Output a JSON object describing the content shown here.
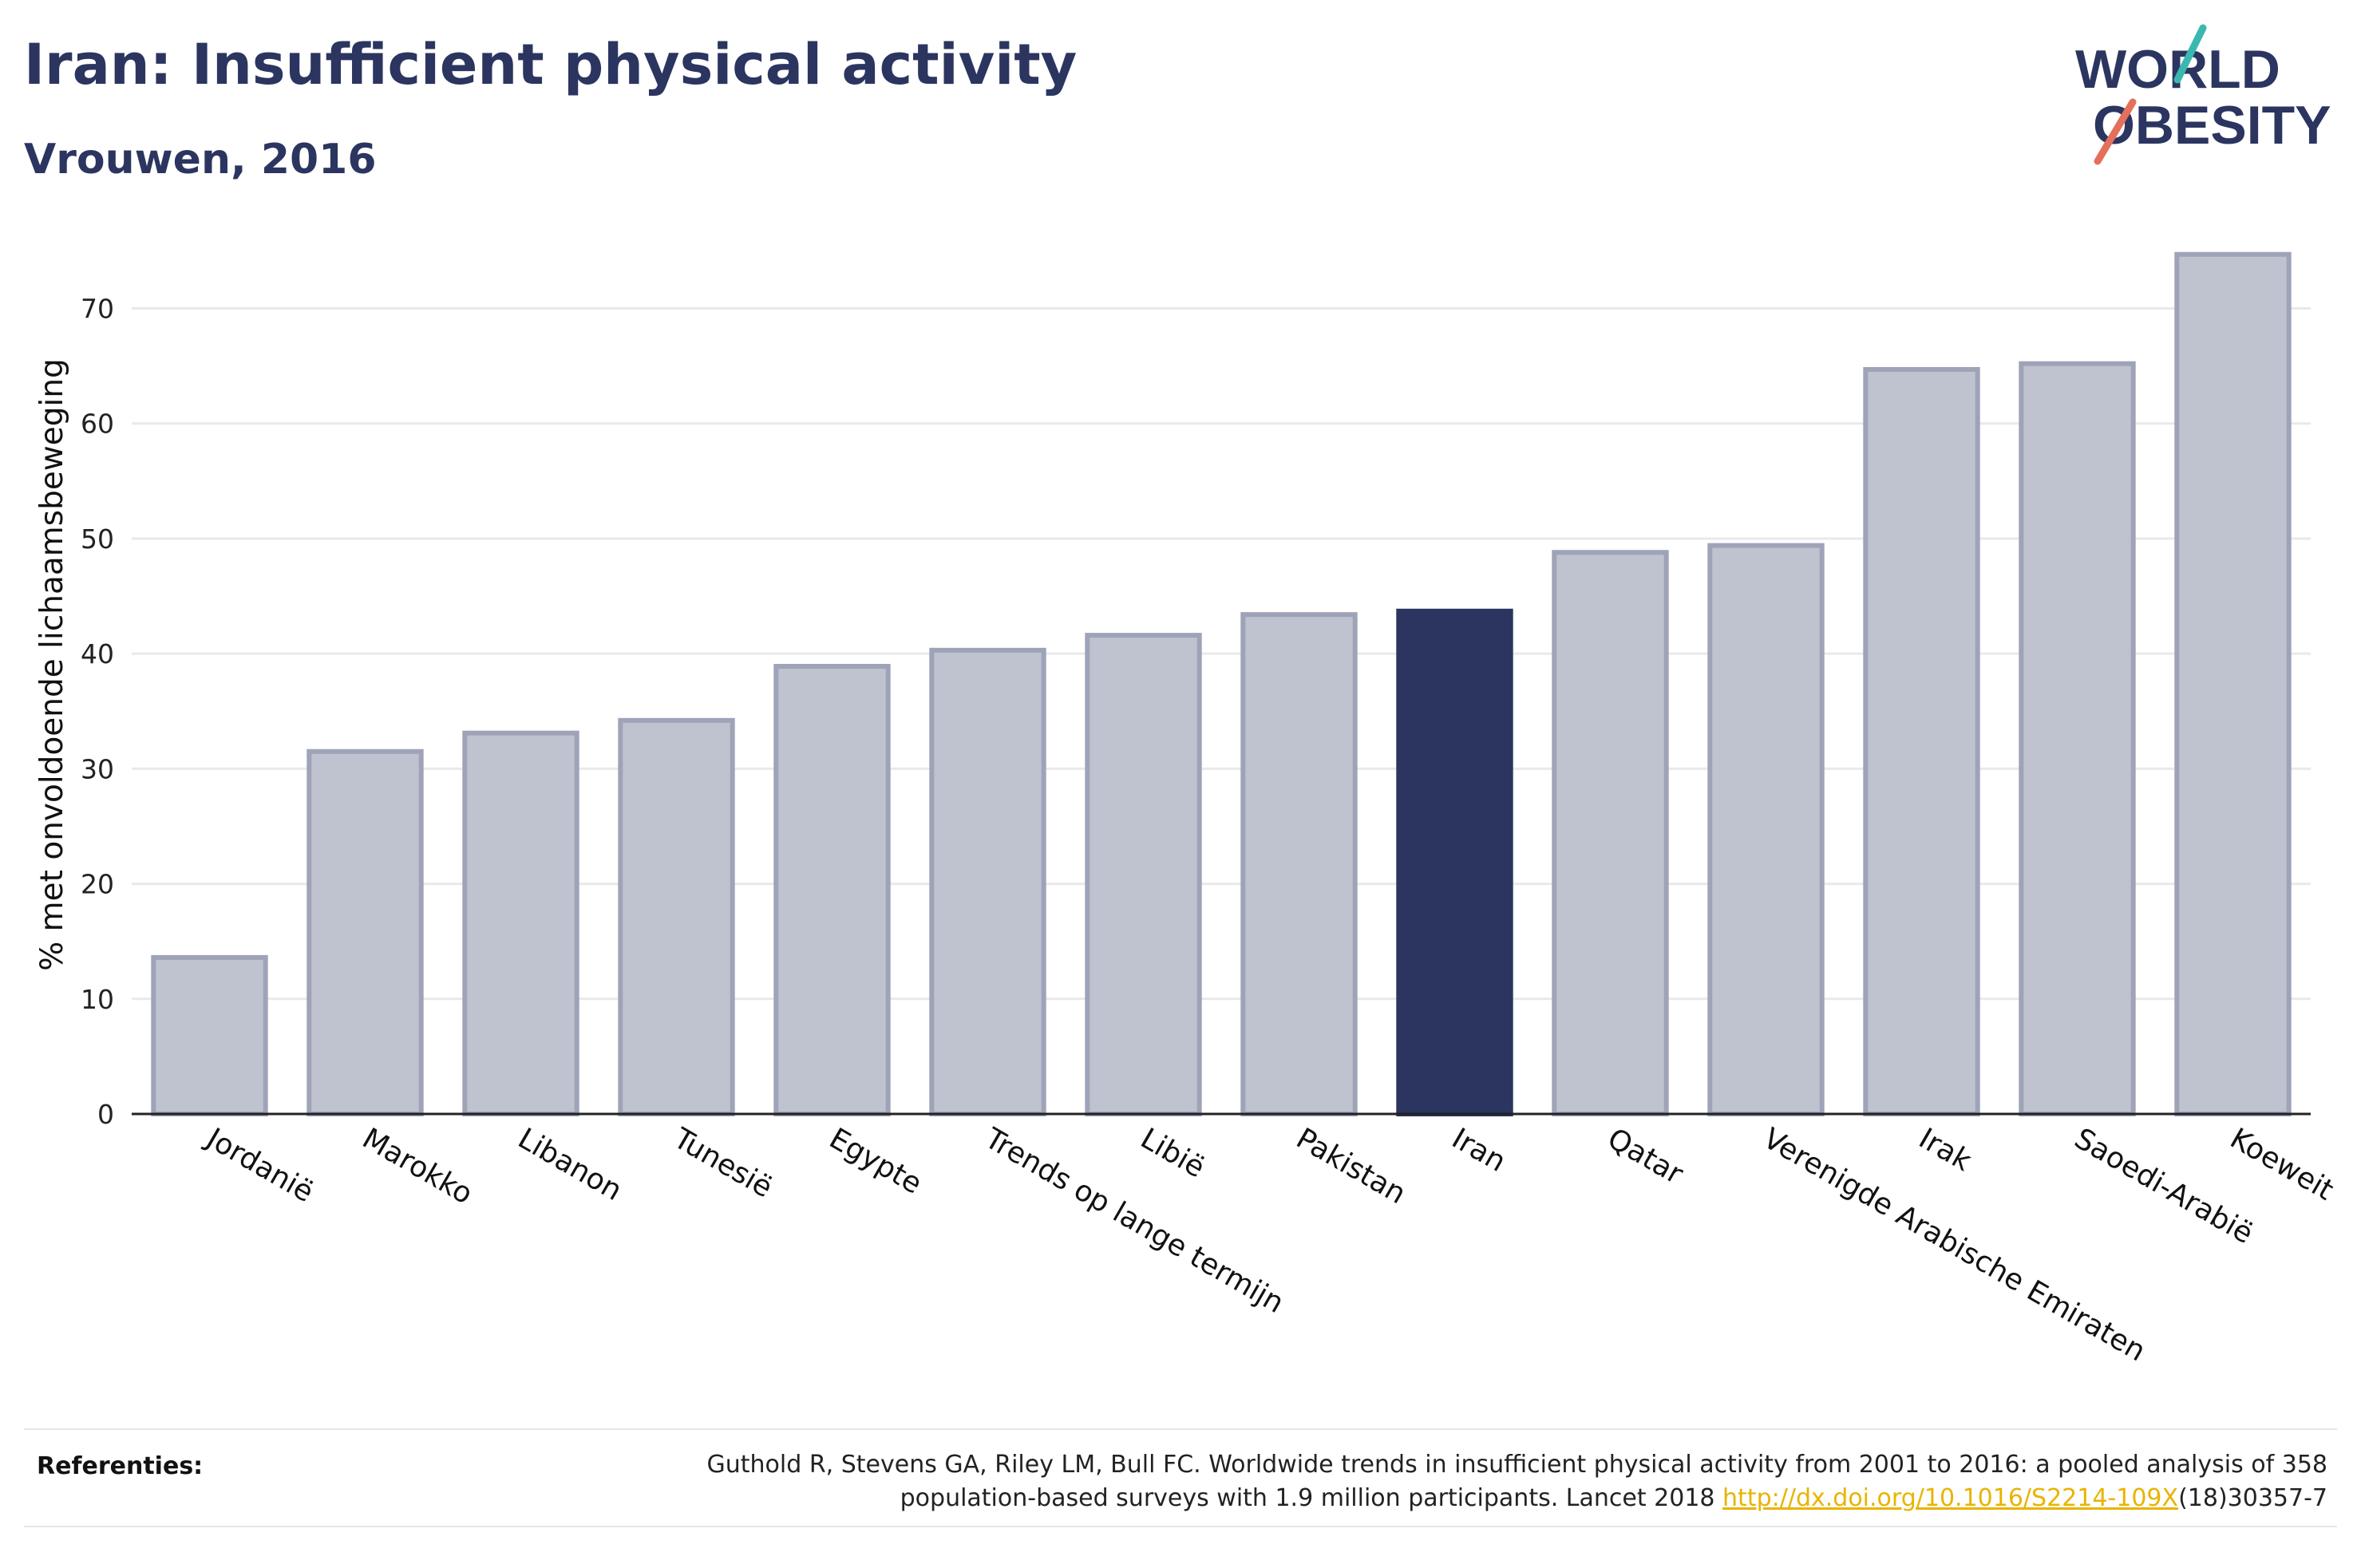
{
  "header": {
    "title": "Iran: Insufficient physical activity",
    "subtitle": "Vrouwen, 2016"
  },
  "logo": {
    "line1": "WORLD",
    "line2": "OBESITY"
  },
  "chart_data": {
    "type": "bar",
    "ylabel": "% met onvoldoende lichaamsbeweging",
    "xlabel": "",
    "ylim": [
      0,
      76
    ],
    "yticks": [
      0,
      10,
      20,
      30,
      40,
      50,
      60,
      70
    ],
    "grid": true,
    "categories": [
      "Jordanië",
      "Marokko",
      "Libanon",
      "Tunesië",
      "Egypte",
      "Trends op lange termijn",
      "Libië",
      "Pakistan",
      "Iran",
      "Qatar",
      "Verenigde Arabische Emiraten",
      "Irak",
      "Saoedi-Arabië",
      "Koeweit"
    ],
    "values": [
      13.6,
      31.5,
      33.1,
      34.2,
      38.9,
      40.3,
      41.6,
      43.4,
      43.7,
      48.8,
      49.4,
      64.7,
      65.2,
      74.7
    ],
    "highlight": "Iran",
    "colors": {
      "bar": "#bfc2cf",
      "bar_border": "#9ea3b8",
      "highlight": "#2b3560",
      "axis": "#222222",
      "grid": "#e9e9e9"
    }
  },
  "footer": {
    "label": "Referenties:",
    "text_line1": "Guthold R, Stevens GA, Riley LM, Bull FC. Worldwide trends in insufficient physical activity from 2001 to 2016: a pooled analysis of 358",
    "text_line2_pre": "population-based surveys with 1.9 million participants. Lancet 2018",
    "link": "http://dx.doi.org/10.1016/S2214-109X",
    "text_line2_post": "(18)30357-7"
  }
}
